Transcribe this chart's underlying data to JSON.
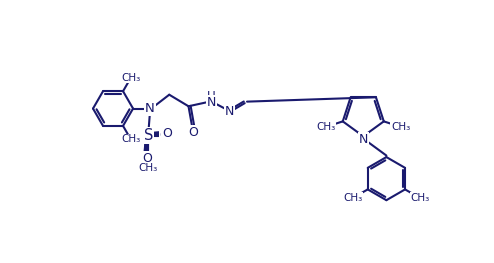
{
  "bg_color": "#ffffff",
  "line_color": "#1a1a6e",
  "line_width": 1.5,
  "font_size": 9,
  "figsize": [
    4.94,
    2.63
  ],
  "dpi": 100,
  "atom_labels": {
    "N1": "N",
    "N2": "N",
    "N3": "N",
    "S": "S",
    "O1": "O",
    "O2": "O",
    "O3": "O",
    "H": "H"
  }
}
